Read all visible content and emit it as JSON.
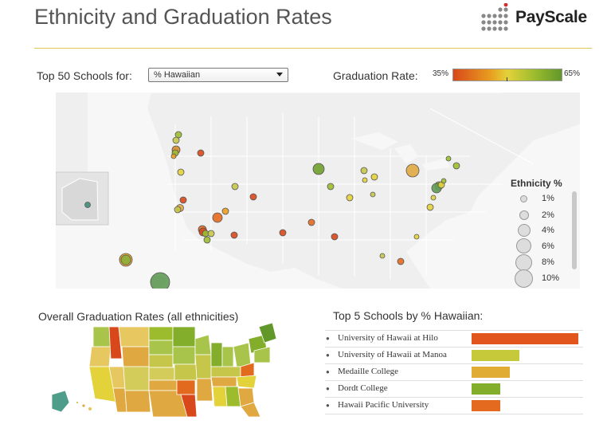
{
  "header": {
    "title": "Ethnicity and Graduation Rates",
    "logo_text": "PayScale"
  },
  "filter": {
    "label": "Top 50 Schools for:",
    "selected": "% Hawaiian"
  },
  "graduation_legend": {
    "label": "Graduation Rate:",
    "min": "35%",
    "max": "65%"
  },
  "ethnicity_legend": {
    "title": "Ethnicity %",
    "items": [
      "1%",
      "2%",
      "4%",
      "6%",
      "8%",
      "10%"
    ]
  },
  "overall": {
    "title": "Overall Graduation Rates (all ethnicities)"
  },
  "top5": {
    "title": "Top 5 Schools by % Hawaiian:",
    "rows": [
      {
        "name": "University of Hawaii at Hilo",
        "value": 1.0,
        "color": "#e2561e"
      },
      {
        "name": "University of Hawaii at Manoa",
        "value": 0.45,
        "color": "#c6c93a"
      },
      {
        "name": "Medaille College",
        "value": 0.36,
        "color": "#e0ac34"
      },
      {
        "name": "Dordt College",
        "value": 0.27,
        "color": "#82ae2c"
      },
      {
        "name": "Hawaii Pacific University",
        "value": 0.27,
        "color": "#e36a1f"
      }
    ]
  },
  "colors": {
    "accent_rule": "#e0c45c",
    "low": "#d9481a",
    "mid": "#e3d23a",
    "high": "#62972a"
  }
}
